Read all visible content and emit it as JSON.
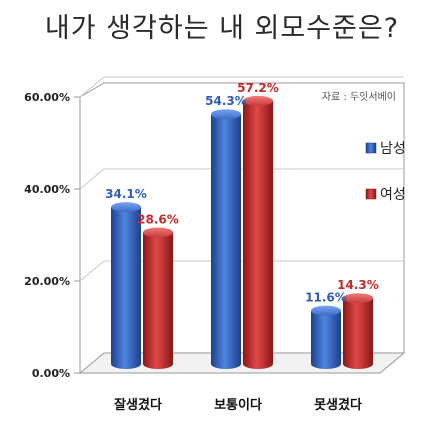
{
  "chart_data": {
    "type": "bar",
    "title": "내가 생각하는 내 외모수준은?",
    "source": "자료 : 두잇서베이",
    "categories": [
      "잘생겼다",
      "보통이다",
      "못생겼다"
    ],
    "series": [
      {
        "name": "남성",
        "values": [
          34.1,
          54.3,
          11.6
        ],
        "labels": [
          "34.1%",
          "54.3%",
          "11.6%"
        ],
        "color": "#2f5db8",
        "label_color": "#2f5db8"
      },
      {
        "name": "여성",
        "values": [
          28.6,
          57.2,
          14.3
        ],
        "labels": [
          "28.6%",
          "57.2%",
          "14.3%"
        ],
        "color": "#c42a2a",
        "label_color": "#c42a2a"
      }
    ],
    "ylim": [
      0,
      60
    ],
    "yticks": [
      0,
      20,
      40,
      60
    ],
    "ytick_labels": [
      "0.00%",
      "20.00%",
      "40.00%",
      "60.00%"
    ],
    "grid": true,
    "legend": "right"
  }
}
